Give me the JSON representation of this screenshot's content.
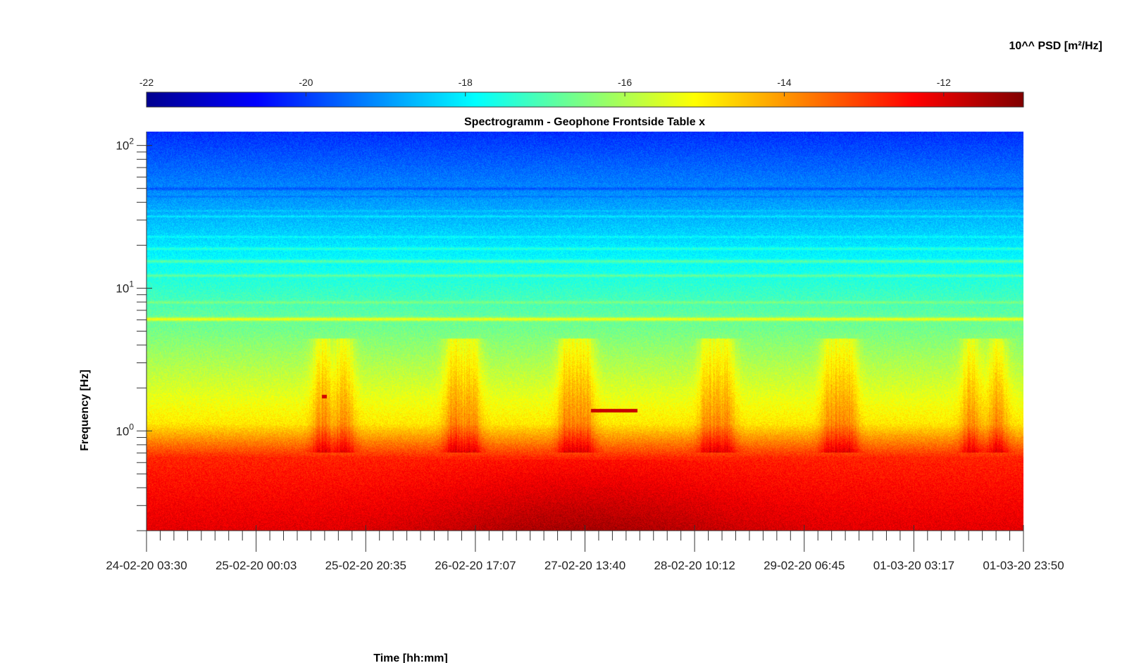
{
  "chart_data": {
    "type": "heatmap",
    "title": "Spectrogramm - Geophone Frontside Table x",
    "xlabel": "Time [hh:mm]",
    "ylabel": "Frequency [Hz]",
    "yscale": "log",
    "ylim": [
      0.2,
      125
    ],
    "y_ticks": [
      {
        "base": "10",
        "exp": "0",
        "value": 1
      },
      {
        "base": "10",
        "exp": "1",
        "value": 10
      },
      {
        "base": "10",
        "exp": "2",
        "value": 100
      }
    ],
    "x_tick_labels": [
      "24-02-20 03:30",
      "25-02-20 00:03",
      "25-02-20 20:35",
      "26-02-20 17:07",
      "27-02-20 13:40",
      "28-02-20 10:12",
      "29-02-20 06:45",
      "01-03-20 03:17",
      "01-03-20 23:50"
    ],
    "colorbar": {
      "label": "10^^ PSD [m²/Hz]",
      "range": [
        -22,
        -11
      ],
      "ticks": [
        -22,
        -20,
        -18,
        -16,
        -14,
        -12
      ],
      "colormap": "jet"
    },
    "features": {
      "persistent_line_hz": 6.1,
      "event_band": {
        "freq_hz": 1.4,
        "start_label": "27-02-20 13:40"
      }
    }
  }
}
